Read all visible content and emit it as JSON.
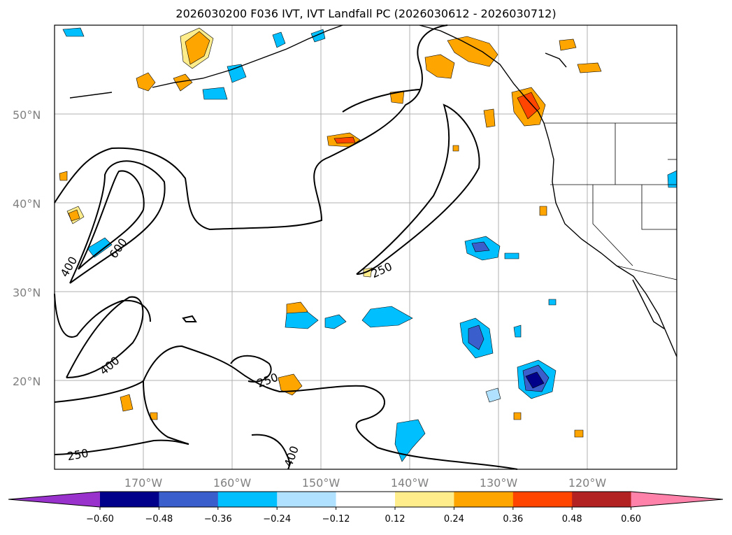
{
  "title": "2026030200 F036 IVT, IVT Landfall PC (2026030612 - 2026030712)",
  "lat_labels": [
    "50°N",
    "40°N",
    "30°N",
    "20°N"
  ],
  "lon_labels": [
    "170°W",
    "160°W",
    "150°W",
    "140°W",
    "130°W",
    "120°W"
  ],
  "contour_labels": [
    "400",
    "600",
    "400",
    "250",
    "250",
    "250",
    "400"
  ],
  "colorbar": {
    "ticks": [
      "−0.60",
      "−0.48",
      "−0.36",
      "−0.24",
      "−0.12",
      "0.12",
      "0.24",
      "0.36",
      "0.48",
      "0.60"
    ],
    "colors": [
      "#9932cc",
      "#00008b",
      "#3a5fcd",
      "#00bfff",
      "#b0e2ff",
      "#ffffff",
      "#ffec8b",
      "#ffa500",
      "#ff4500",
      "#b22222",
      "#ff82ab"
    ]
  }
}
